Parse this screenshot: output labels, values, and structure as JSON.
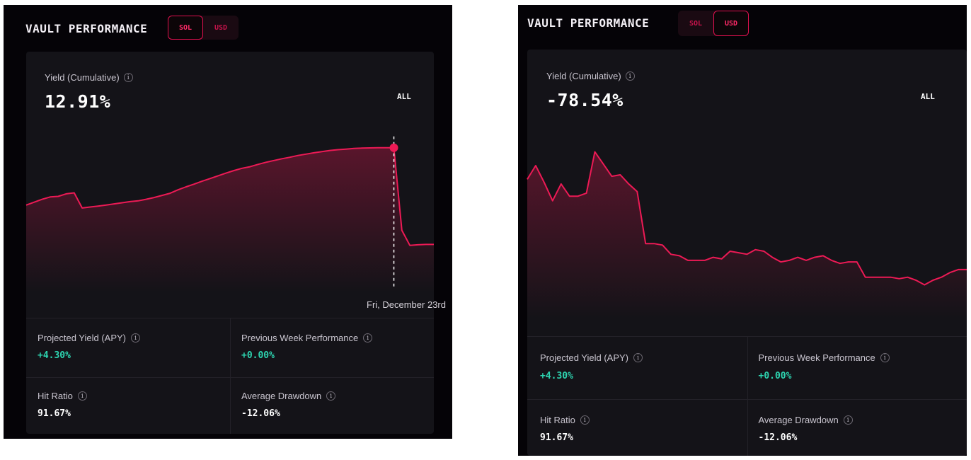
{
  "colors": {
    "accent": "#ec1a55",
    "positive": "#2dd4b0",
    "panel_bg": "#050307",
    "card_bg": "#141318"
  },
  "panels": [
    {
      "title": "VAULT PERFORMANCE",
      "toggle": {
        "options": [
          "SOL",
          "USD"
        ],
        "active": "SOL"
      },
      "metric_label": "Yield (Cumulative)",
      "metric_value": "12.91%",
      "range": "ALL",
      "tooltip_date": "Fri, December 23rd",
      "stats": {
        "projected_yield": {
          "label": "Projected Yield (APY)",
          "value": "+4.30%"
        },
        "prev_week": {
          "label": "Previous Week Performance",
          "value": "+0.00%"
        },
        "hit_ratio": {
          "label": "Hit Ratio",
          "value": "91.67%"
        },
        "avg_drawdown": {
          "label": "Average Drawdown",
          "value": "-12.06%"
        }
      }
    },
    {
      "title": "VAULT PERFORMANCE",
      "toggle": {
        "options": [
          "SOL",
          "USD"
        ],
        "active": "USD"
      },
      "metric_label": "Yield (Cumulative)",
      "metric_value": "-78.54%",
      "range": "ALL",
      "stats": {
        "projected_yield": {
          "label": "Projected Yield (APY)",
          "value": "+4.30%"
        },
        "prev_week": {
          "label": "Previous Week Performance",
          "value": "+0.00%"
        },
        "hit_ratio": {
          "label": "Hit Ratio",
          "value": "91.67%"
        },
        "avg_drawdown": {
          "label": "Average Drawdown",
          "value": "-12.06%"
        }
      }
    }
  ],
  "chart_data": [
    {
      "type": "area",
      "x": [
        0,
        1,
        2,
        3,
        4,
        5,
        6,
        7,
        8,
        9,
        10,
        11,
        12,
        13,
        14,
        15,
        16,
        17,
        18,
        19,
        20,
        21,
        22,
        23,
        24,
        25,
        26,
        27,
        28,
        29,
        30,
        31,
        32,
        33,
        34,
        35,
        36,
        37,
        38,
        39,
        40,
        41,
        42,
        43,
        44,
        45,
        46,
        47,
        48,
        49,
        50,
        51
      ],
      "y": [
        -3.0,
        -1.5,
        0.0,
        1.2,
        1.5,
        2.8,
        3.3,
        -4.5,
        -4.0,
        -3.5,
        -3.0,
        -2.4,
        -1.8,
        -1.2,
        -0.8,
        0.0,
        0.9,
        2.0,
        3.1,
        4.9,
        6.4,
        7.8,
        9.3,
        10.7,
        12.1,
        13.5,
        14.8,
        16.0,
        16.8,
        18.0,
        19.1,
        20.0,
        20.9,
        21.7,
        22.6,
        23.3,
        24.0,
        24.6,
        25.2,
        25.6,
        25.9,
        26.2,
        26.4,
        26.5,
        26.6,
        26.6,
        26.6,
        -16.0,
        -23.8,
        -23.5,
        -23.3,
        -23.3
      ],
      "highlight_index": 46,
      "highlight_label": "Fri, December 23rd",
      "ylim": [
        -48,
        36
      ]
    },
    {
      "type": "area",
      "x": [
        0,
        1,
        2,
        3,
        4,
        5,
        6,
        7,
        8,
        9,
        10,
        11,
        12,
        13,
        14,
        15,
        16,
        17,
        18,
        19,
        20,
        21,
        22,
        23,
        24,
        25,
        26,
        27,
        28,
        29,
        30,
        31,
        32,
        33,
        34,
        35,
        36,
        37,
        38,
        39,
        40,
        41,
        42,
        43,
        44,
        45,
        46,
        47,
        48,
        49,
        50,
        51,
        52
      ],
      "y": [
        -14,
        -5,
        -16,
        -28,
        -17,
        -25,
        -25,
        -23,
        4,
        -4,
        -12,
        -11,
        -17,
        -22,
        -56,
        -56,
        -57,
        -63,
        -64,
        -67,
        -67,
        -67,
        -65,
        -66,
        -61,
        -62,
        -63,
        -60,
        -61,
        -65,
        -68,
        -67,
        -65,
        -67,
        -65,
        -64,
        -67,
        -69,
        -68,
        -68,
        -78,
        -78,
        -78,
        -78,
        -79,
        -78,
        -80,
        -83,
        -80,
        -78,
        -75,
        -73,
        -73
      ],
      "ylim": [
        -105,
        20
      ]
    }
  ]
}
